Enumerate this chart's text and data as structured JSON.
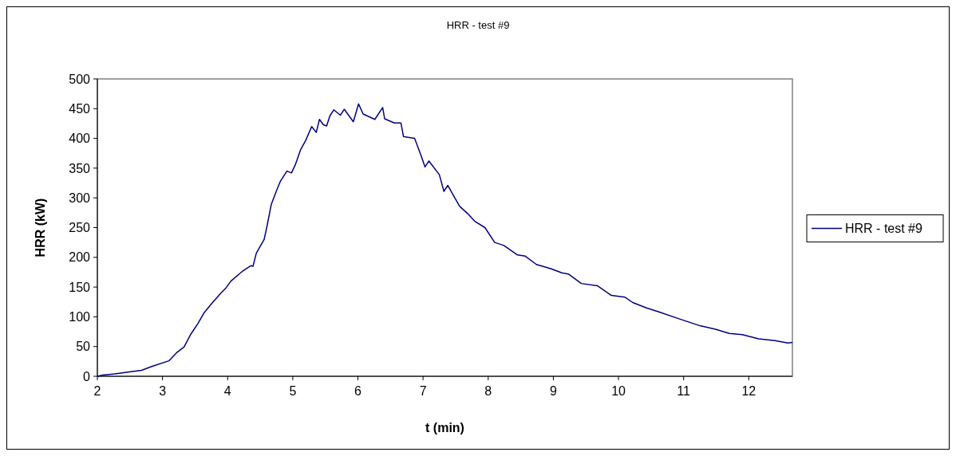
{
  "chart_data": {
    "type": "line",
    "title": "HRR - test #9",
    "xlabel": "t (min)",
    "ylabel": "HRR (kW)",
    "xlim": [
      2,
      12.67
    ],
    "xticks": [
      2,
      3,
      4,
      5,
      6,
      7,
      8,
      9,
      10,
      11,
      12
    ],
    "ylim": [
      0,
      500
    ],
    "yticks": [
      0,
      50,
      100,
      150,
      200,
      250,
      300,
      350,
      400,
      450,
      500
    ],
    "grid": false,
    "legend": "right",
    "marker": "none",
    "line_style": "solid",
    "series": [
      {
        "name": "HRR - test #9",
        "color": "#000080",
        "x": [
          2,
          2.08,
          2.27,
          2.47,
          2.68,
          2.85,
          3.1,
          3.22,
          3.33,
          3.43,
          3.54,
          3.64,
          3.76,
          3.89,
          3.97,
          4.05,
          4.22,
          4.36,
          4.39,
          4.44,
          4.56,
          4.6,
          4.67,
          4.75,
          4.81,
          4.91,
          4.98,
          5.04,
          5.12,
          5.2,
          5.29,
          5.36,
          5.41,
          5.47,
          5.52,
          5.57,
          5.63,
          5.73,
          5.79,
          5.93,
          6.01,
          6.08,
          6.26,
          6.38,
          6.41,
          6.56,
          6.66,
          6.7,
          6.87,
          6.97,
          7.03,
          7.09,
          7.25,
          7.32,
          7.38,
          7.56,
          7.69,
          7.79,
          7.95,
          8.1,
          8.24,
          8.45,
          8.57,
          8.74,
          8.96,
          9.13,
          9.23,
          9.43,
          9.68,
          9.89,
          10.1,
          10.22,
          10.43,
          10.63,
          10.92,
          11.25,
          11.49,
          11.7,
          11.9,
          12.15,
          12.4,
          12.6,
          12.67
        ],
        "values": [
          0,
          2,
          4,
          7,
          10,
          17,
          26,
          40,
          49,
          70,
          88,
          107,
          123,
          139,
          148,
          160,
          176,
          186,
          185,
          207,
          230,
          250,
          289,
          312,
          328,
          345,
          342,
          356,
          381,
          397,
          420,
          410,
          432,
          423,
          421,
          438,
          448,
          439,
          449,
          428,
          458,
          441,
          432,
          452,
          433,
          426,
          426,
          403,
          400,
          371,
          352,
          362,
          339,
          311,
          321,
          286,
          273,
          261,
          250,
          225,
          220,
          204,
          202,
          188,
          181,
          174,
          172,
          156,
          152,
          136,
          133,
          124,
          115,
          108,
          97,
          85,
          79,
          72,
          70,
          63,
          60,
          56,
          57
        ]
      }
    ]
  }
}
